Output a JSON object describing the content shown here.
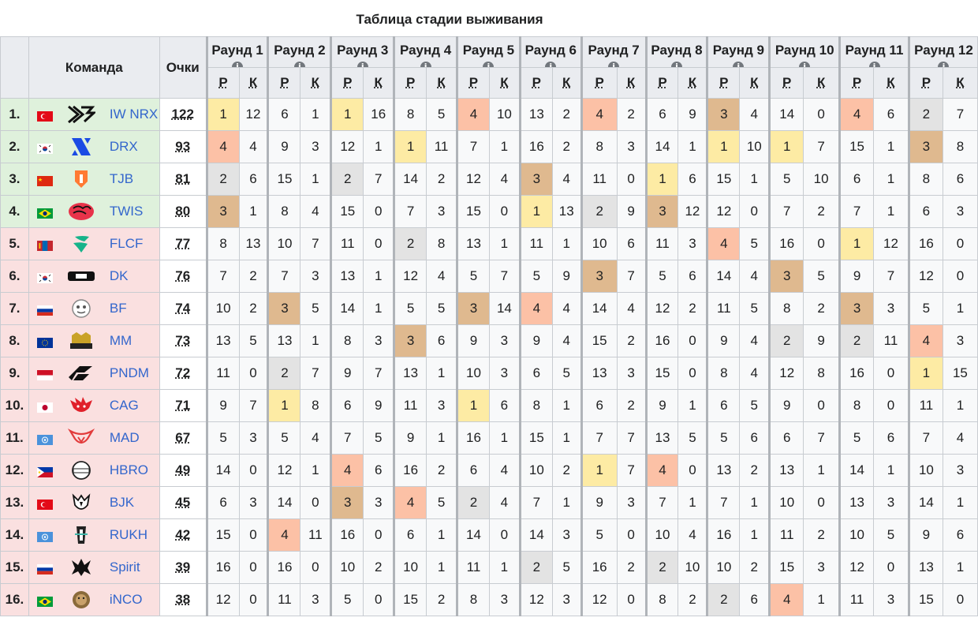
{
  "title": "Таблица стадии выживания",
  "headers": {
    "team": "Команда",
    "points": "Очки",
    "place": "Р",
    "kills": "К"
  },
  "rounds": [
    "Раунд 1",
    "Раунд 2",
    "Раунд 3",
    "Раунд 4",
    "Раунд 5",
    "Раунд 6",
    "Раунд 7",
    "Раунд 8",
    "Раунд 9",
    "Раунд 10",
    "Раунд 11",
    "Раунд 12"
  ],
  "colors": {
    "first": "#fdeba4",
    "second": "#e3e3e3",
    "third": "#dfb98f",
    "fourth": "#fcc1a6",
    "qualified": "#dff1dc",
    "eliminated": "#fae0e0",
    "link": "#3366cc"
  },
  "teams": [
    {
      "rank": "1.",
      "flag": "tr",
      "logo": "iwnrx-logo",
      "name": "IW NRX",
      "points": "122",
      "status": "qualified",
      "results": [
        [
          1,
          12
        ],
        [
          6,
          1
        ],
        [
          1,
          16
        ],
        [
          8,
          5
        ],
        [
          4,
          10
        ],
        [
          13,
          2
        ],
        [
          4,
          2
        ],
        [
          6,
          9
        ],
        [
          3,
          4
        ],
        [
          14,
          0
        ],
        [
          4,
          6
        ],
        [
          2,
          7
        ]
      ]
    },
    {
      "rank": "2.",
      "flag": "kr",
      "logo": "drx-logo",
      "name": "DRX",
      "points": "93",
      "status": "qualified",
      "results": [
        [
          4,
          4
        ],
        [
          9,
          3
        ],
        [
          12,
          1
        ],
        [
          1,
          11
        ],
        [
          7,
          1
        ],
        [
          16,
          2
        ],
        [
          8,
          3
        ],
        [
          14,
          1
        ],
        [
          1,
          10
        ],
        [
          1,
          7
        ],
        [
          15,
          1
        ],
        [
          3,
          8
        ]
      ]
    },
    {
      "rank": "3.",
      "flag": "cn",
      "logo": "tjb-logo",
      "name": "TJB",
      "points": "81",
      "status": "qualified",
      "results": [
        [
          2,
          6
        ],
        [
          15,
          1
        ],
        [
          2,
          7
        ],
        [
          14,
          2
        ],
        [
          12,
          4
        ],
        [
          3,
          4
        ],
        [
          11,
          0
        ],
        [
          1,
          6
        ],
        [
          15,
          1
        ],
        [
          5,
          10
        ],
        [
          6,
          1
        ],
        [
          8,
          6
        ]
      ]
    },
    {
      "rank": "4.",
      "flag": "br",
      "logo": "twis-logo",
      "name": "TWIS",
      "points": "80",
      "status": "qualified",
      "results": [
        [
          3,
          1
        ],
        [
          8,
          4
        ],
        [
          15,
          0
        ],
        [
          7,
          3
        ],
        [
          15,
          0
        ],
        [
          1,
          13
        ],
        [
          2,
          9
        ],
        [
          3,
          12
        ],
        [
          12,
          0
        ],
        [
          7,
          2
        ],
        [
          7,
          1
        ],
        [
          6,
          3
        ]
      ]
    },
    {
      "rank": "5.",
      "flag": "mn",
      "logo": "flcf-logo",
      "name": "FLCF",
      "points": "77",
      "status": "eliminated",
      "results": [
        [
          8,
          13
        ],
        [
          10,
          7
        ],
        [
          11,
          0
        ],
        [
          2,
          8
        ],
        [
          13,
          1
        ],
        [
          11,
          1
        ],
        [
          10,
          6
        ],
        [
          11,
          3
        ],
        [
          4,
          5
        ],
        [
          16,
          0
        ],
        [
          1,
          12
        ],
        [
          16,
          0
        ]
      ]
    },
    {
      "rank": "6.",
      "flag": "kr",
      "logo": "dk-logo",
      "name": "DK",
      "points": "76",
      "status": "eliminated",
      "results": [
        [
          7,
          2
        ],
        [
          7,
          3
        ],
        [
          13,
          1
        ],
        [
          12,
          4
        ],
        [
          5,
          7
        ],
        [
          5,
          9
        ],
        [
          3,
          7
        ],
        [
          5,
          6
        ],
        [
          14,
          4
        ],
        [
          3,
          5
        ],
        [
          9,
          7
        ],
        [
          12,
          0
        ]
      ]
    },
    {
      "rank": "7.",
      "flag": "ru",
      "logo": "bf-logo",
      "name": "BF",
      "points": "74",
      "status": "eliminated",
      "results": [
        [
          10,
          2
        ],
        [
          3,
          5
        ],
        [
          14,
          1
        ],
        [
          5,
          5
        ],
        [
          3,
          14
        ],
        [
          4,
          4
        ],
        [
          14,
          4
        ],
        [
          12,
          2
        ],
        [
          11,
          5
        ],
        [
          8,
          2
        ],
        [
          3,
          3
        ],
        [
          5,
          1
        ]
      ]
    },
    {
      "rank": "8.",
      "flag": "eu",
      "logo": "mm-logo",
      "name": "MM",
      "points": "73",
      "status": "eliminated",
      "results": [
        [
          13,
          5
        ],
        [
          13,
          1
        ],
        [
          8,
          3
        ],
        [
          3,
          6
        ],
        [
          9,
          3
        ],
        [
          9,
          4
        ],
        [
          15,
          2
        ],
        [
          16,
          0
        ],
        [
          9,
          4
        ],
        [
          2,
          9
        ],
        [
          2,
          11
        ],
        [
          4,
          3
        ]
      ]
    },
    {
      "rank": "9.",
      "flag": "id",
      "logo": "pndm-logo",
      "name": "PNDM",
      "points": "72",
      "status": "eliminated",
      "results": [
        [
          11,
          0
        ],
        [
          2,
          7
        ],
        [
          9,
          7
        ],
        [
          13,
          1
        ],
        [
          10,
          3
        ],
        [
          6,
          5
        ],
        [
          13,
          3
        ],
        [
          15,
          0
        ],
        [
          8,
          4
        ],
        [
          12,
          8
        ],
        [
          16,
          0
        ],
        [
          1,
          15
        ]
      ]
    },
    {
      "rank": "10.",
      "flag": "jp",
      "logo": "cag-logo",
      "name": "CAG",
      "points": "71",
      "status": "eliminated",
      "results": [
        [
          9,
          7
        ],
        [
          1,
          8
        ],
        [
          6,
          9
        ],
        [
          11,
          3
        ],
        [
          1,
          6
        ],
        [
          8,
          1
        ],
        [
          6,
          2
        ],
        [
          9,
          1
        ],
        [
          6,
          5
        ],
        [
          9,
          0
        ],
        [
          8,
          0
        ],
        [
          11,
          1
        ]
      ]
    },
    {
      "rank": "11.",
      "flag": "un",
      "logo": "mad-logo",
      "name": "MAD",
      "points": "67",
      "status": "eliminated",
      "results": [
        [
          5,
          3
        ],
        [
          5,
          4
        ],
        [
          7,
          5
        ],
        [
          9,
          1
        ],
        [
          16,
          1
        ],
        [
          15,
          1
        ],
        [
          7,
          7
        ],
        [
          13,
          5
        ],
        [
          5,
          6
        ],
        [
          6,
          7
        ],
        [
          5,
          6
        ],
        [
          7,
          4
        ]
      ]
    },
    {
      "rank": "12.",
      "flag": "ph",
      "logo": "hbro-logo",
      "name": "HBRO",
      "points": "49",
      "status": "eliminated",
      "results": [
        [
          14,
          0
        ],
        [
          12,
          1
        ],
        [
          4,
          6
        ],
        [
          16,
          2
        ],
        [
          6,
          4
        ],
        [
          10,
          2
        ],
        [
          1,
          7
        ],
        [
          4,
          0
        ],
        [
          13,
          2
        ],
        [
          13,
          1
        ],
        [
          14,
          1
        ],
        [
          10,
          3
        ]
      ]
    },
    {
      "rank": "13.",
      "flag": "tr",
      "logo": "bjk-logo",
      "name": "BJK",
      "points": "45",
      "status": "eliminated",
      "results": [
        [
          6,
          3
        ],
        [
          14,
          0
        ],
        [
          3,
          3
        ],
        [
          4,
          5
        ],
        [
          2,
          4
        ],
        [
          7,
          1
        ],
        [
          9,
          3
        ],
        [
          7,
          1
        ],
        [
          7,
          1
        ],
        [
          10,
          0
        ],
        [
          13,
          3
        ],
        [
          14,
          1
        ]
      ]
    },
    {
      "rank": "14.",
      "flag": "un",
      "logo": "rukh-logo",
      "name": "RUKH",
      "points": "42",
      "status": "eliminated",
      "results": [
        [
          15,
          0
        ],
        [
          4,
          11
        ],
        [
          16,
          0
        ],
        [
          6,
          1
        ],
        [
          14,
          0
        ],
        [
          14,
          3
        ],
        [
          5,
          0
        ],
        [
          10,
          4
        ],
        [
          16,
          1
        ],
        [
          11,
          2
        ],
        [
          10,
          5
        ],
        [
          9,
          6
        ]
      ]
    },
    {
      "rank": "15.",
      "flag": "ru",
      "logo": "spirit-logo",
      "name": "Spirit",
      "points": "39",
      "status": "eliminated",
      "results": [
        [
          16,
          0
        ],
        [
          16,
          0
        ],
        [
          10,
          2
        ],
        [
          10,
          1
        ],
        [
          11,
          1
        ],
        [
          2,
          5
        ],
        [
          16,
          2
        ],
        [
          2,
          10
        ],
        [
          10,
          2
        ],
        [
          15,
          3
        ],
        [
          12,
          0
        ],
        [
          13,
          1
        ]
      ]
    },
    {
      "rank": "16.",
      "flag": "br",
      "logo": "inco-logo",
      "name": "iNCO",
      "points": "38",
      "status": "eliminated",
      "results": [
        [
          12,
          0
        ],
        [
          11,
          3
        ],
        [
          5,
          0
        ],
        [
          15,
          2
        ],
        [
          8,
          3
        ],
        [
          12,
          3
        ],
        [
          12,
          0
        ],
        [
          8,
          2
        ],
        [
          2,
          6
        ],
        [
          4,
          1
        ],
        [
          11,
          3
        ],
        [
          15,
          0
        ]
      ]
    }
  ]
}
